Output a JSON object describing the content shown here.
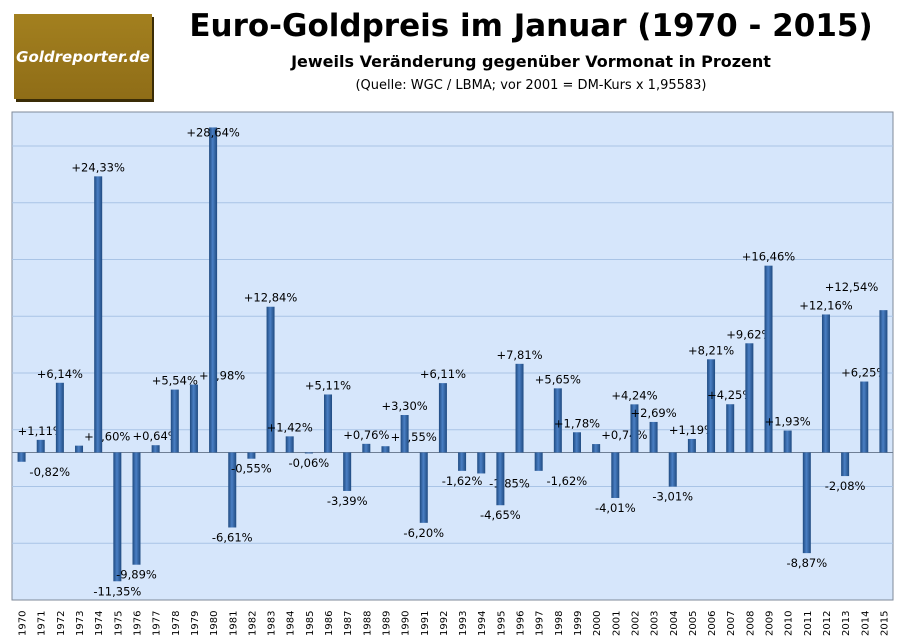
{
  "logo_text": "Goldreporter.de",
  "chart_data": {
    "type": "bar",
    "title": "Euro-Goldpreis im Januar (1970 - 2015)",
    "subtitle": "Jeweils Veränderung gegenüber Vormonat in Prozent",
    "source": "(Quelle: WGC / LBMA; vor 2001 = DM-Kurs  x 1,95583)",
    "xlabel": "",
    "ylabel": "",
    "ylim": [
      -13,
      30
    ],
    "grid": true,
    "categories": [
      "1970",
      "1971",
      "1972",
      "1973",
      "1974",
      "1975",
      "1976",
      "1977",
      "1978",
      "1979",
      "1980",
      "1981",
      "1982",
      "1983",
      "1984",
      "1985",
      "1986",
      "1987",
      "1988",
      "1989",
      "1990",
      "1991",
      "1992",
      "1993",
      "1994",
      "1995",
      "1996",
      "1997",
      "1998",
      "1999",
      "2000",
      "2001",
      "2002",
      "2003",
      "2004",
      "2005",
      "2006",
      "2007",
      "2008",
      "2009",
      "2010",
      "2011",
      "2012",
      "2013",
      "2014",
      "2015"
    ],
    "values": [
      -0.82,
      1.11,
      6.14,
      0.6,
      24.33,
      -11.35,
      -9.89,
      0.64,
      5.54,
      5.98,
      28.64,
      -6.61,
      -0.55,
      12.84,
      1.42,
      -0.06,
      5.11,
      -3.39,
      0.76,
      0.55,
      3.3,
      -6.2,
      6.11,
      -1.62,
      -1.85,
      -4.65,
      7.81,
      -1.62,
      5.65,
      1.78,
      0.74,
      -4.01,
      4.24,
      2.69,
      -3.01,
      1.19,
      8.21,
      4.25,
      9.62,
      16.46,
      1.93,
      -8.87,
      12.16,
      -2.08,
      6.25,
      12.54
    ],
    "labels": [
      "-0,82%",
      "+1,11%",
      "+6,14%",
      "+0,60%",
      "+24,33%",
      "-11,35%",
      "-9,89%",
      "+0,64%",
      "+5,54%",
      "+5,98%",
      "+28,64%",
      "-6,61%",
      "-0,55%",
      "+12,84%",
      "+1,42%",
      "-0,06%",
      "+5,11%",
      "-3,39%",
      "+0,76%",
      "+0,55%",
      "+3,30%",
      "-6,20%",
      "+6,11%",
      "-1,62%",
      "-1,85%",
      "-4,65%",
      "+7,81%",
      "-1,62%",
      "+5,65%",
      "+1,78%",
      "+0,74%",
      "-4,01%",
      "+4,24%",
      "+2,69%",
      "-3,01%",
      "+1,19%",
      "+8,21%",
      "+4,25%",
      "+9,62%",
      "+16,46%",
      "+1,93%",
      "-8,87%",
      "+12,16%",
      "-2,08%",
      "+6,25%",
      "+12,54%"
    ],
    "colors": {
      "bar": "#2f5f9e",
      "plot_bg": "#d6e6fb",
      "grid": "#a9c4e6"
    }
  }
}
